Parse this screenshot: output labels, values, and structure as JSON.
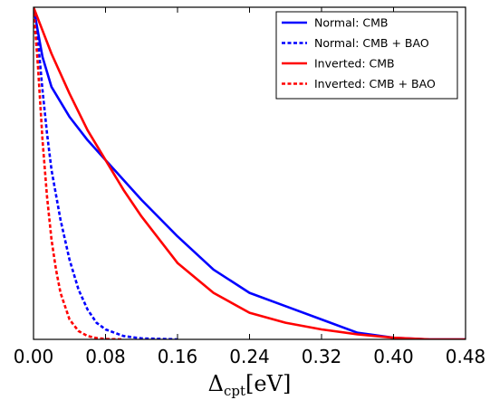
{
  "chart_data": {
    "type": "line",
    "title": "",
    "xlabel": "Δcpt[eV]",
    "xlabel_main": "Δ",
    "xlabel_sub": "cpt",
    "xlabel_unit": "[eV]",
    "ylabel": "",
    "xlim": [
      0.0,
      0.48
    ],
    "ylim": [
      0.0,
      1.0
    ],
    "y_ticks_labeled": false,
    "grid": false,
    "legend_position": "top-right",
    "xticks": [
      0.0,
      0.08,
      0.16,
      0.24,
      0.32,
      0.4,
      0.48
    ],
    "xtick_labels": [
      "0.00",
      "0.08",
      "0.16",
      "0.24",
      "0.32",
      "0.40",
      "0.48"
    ],
    "series": [
      {
        "name": "Normal: CMB",
        "color": "#0000ff",
        "dash": "solid",
        "x": [
          0.0,
          0.01,
          0.02,
          0.04,
          0.06,
          0.08,
          0.1,
          0.12,
          0.16,
          0.2,
          0.24,
          0.28,
          0.32,
          0.36,
          0.4,
          0.44,
          0.48
        ],
        "y": [
          1.0,
          0.85,
          0.76,
          0.67,
          0.6,
          0.54,
          0.48,
          0.42,
          0.31,
          0.21,
          0.14,
          0.1,
          0.06,
          0.02,
          0.005,
          0.0,
          0.0
        ]
      },
      {
        "name": "Normal: CMB + BAO",
        "color": "#0000ff",
        "dash": "dashed",
        "x": [
          0.0,
          0.005,
          0.01,
          0.015,
          0.02,
          0.03,
          0.04,
          0.05,
          0.06,
          0.07,
          0.08,
          0.1,
          0.12,
          0.16
        ],
        "y": [
          1.0,
          0.9,
          0.75,
          0.62,
          0.51,
          0.36,
          0.24,
          0.15,
          0.09,
          0.05,
          0.03,
          0.01,
          0.003,
          0.0
        ]
      },
      {
        "name": "Inverted: CMB",
        "color": "#ff0000",
        "dash": "solid",
        "x": [
          0.0,
          0.01,
          0.02,
          0.04,
          0.06,
          0.08,
          0.1,
          0.12,
          0.16,
          0.2,
          0.24,
          0.28,
          0.32,
          0.36,
          0.4,
          0.44,
          0.48
        ],
        "y": [
          1.0,
          0.93,
          0.86,
          0.74,
          0.63,
          0.54,
          0.45,
          0.37,
          0.23,
          0.14,
          0.08,
          0.05,
          0.03,
          0.015,
          0.005,
          0.0,
          0.0
        ]
      },
      {
        "name": "Inverted: CMB + BAO",
        "color": "#ff0000",
        "dash": "dashed",
        "x": [
          0.0,
          0.005,
          0.01,
          0.015,
          0.02,
          0.025,
          0.03,
          0.04,
          0.05,
          0.06,
          0.07,
          0.08,
          0.1
        ],
        "y": [
          1.0,
          0.82,
          0.6,
          0.43,
          0.3,
          0.21,
          0.14,
          0.06,
          0.025,
          0.01,
          0.004,
          0.001,
          0.0
        ]
      }
    ]
  }
}
